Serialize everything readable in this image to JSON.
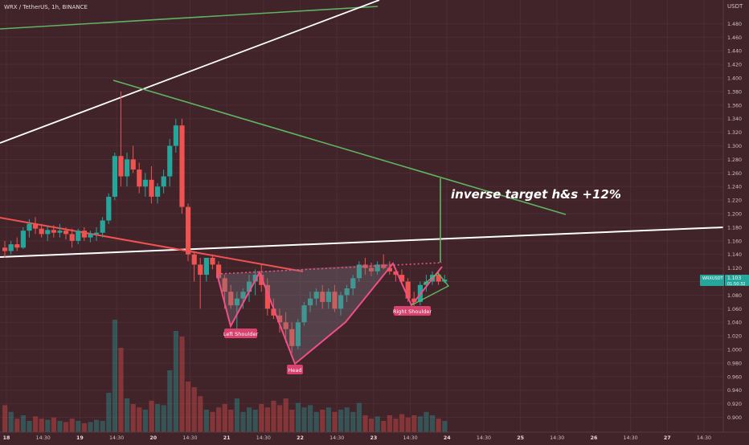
{
  "symbol_title": "WRX / TetherUS, 1h, BINANCE",
  "price_currency": "USDT",
  "last_price_badge": {
    "symbol": "WRXUSDT",
    "price": "1.103",
    "countdown": "01:50:32"
  },
  "annotations": {
    "target_text": "inverse target h&s +12%",
    "left_shoulder": "Left Shoulder",
    "head": "Head",
    "right_shoulder": "Right Shoulder"
  },
  "colors": {
    "up": "#26a69a",
    "down": "#ef5350",
    "background": "#41232a",
    "pattern": "#ef4f86"
  },
  "chart_data": {
    "type": "candlestick",
    "ylim": [
      0.89,
      1.503
    ],
    "x_tick_labels": [
      "18",
      "14:30",
      "19",
      "14:30",
      "20",
      "14:30",
      "21",
      "14:30",
      "22",
      "14:30",
      "23",
      "14:30",
      "24",
      "14:30",
      "25",
      "14:30",
      "26",
      "14:30",
      "27",
      "14:30"
    ],
    "y_tick_labels": [
      "1.480",
      "1.460",
      "1.440",
      "1.420",
      "1.400",
      "1.380",
      "1.360",
      "1.340",
      "1.320",
      "1.300",
      "1.280",
      "1.260",
      "1.240",
      "1.220",
      "1.200",
      "1.180",
      "1.160",
      "1.140",
      "1.120",
      "1.100",
      "1.080",
      "1.060",
      "1.040",
      "1.020",
      "1.000",
      "0.980",
      "0.960",
      "0.940",
      "0.920",
      "0.900"
    ],
    "ohlc": [
      [
        1.15,
        1.16,
        1.135,
        1.145
      ],
      [
        1.145,
        1.16,
        1.14,
        1.155
      ],
      [
        1.155,
        1.165,
        1.145,
        1.15
      ],
      [
        1.15,
        1.18,
        1.148,
        1.175
      ],
      [
        1.175,
        1.192,
        1.165,
        1.185
      ],
      [
        1.185,
        1.195,
        1.17,
        1.178
      ],
      [
        1.178,
        1.185,
        1.165,
        1.17
      ],
      [
        1.17,
        1.182,
        1.16,
        1.176
      ],
      [
        1.176,
        1.183,
        1.165,
        1.172
      ],
      [
        1.172,
        1.185,
        1.165,
        1.175
      ],
      [
        1.175,
        1.18,
        1.162,
        1.17
      ],
      [
        1.17,
        1.178,
        1.15,
        1.16
      ],
      [
        1.16,
        1.178,
        1.155,
        1.175
      ],
      [
        1.175,
        1.18,
        1.16,
        1.165
      ],
      [
        1.165,
        1.175,
        1.158,
        1.17
      ],
      [
        1.17,
        1.18,
        1.16,
        1.172
      ],
      [
        1.172,
        1.195,
        1.165,
        1.19
      ],
      [
        1.19,
        1.23,
        1.185,
        1.225
      ],
      [
        1.225,
        1.29,
        1.22,
        1.285
      ],
      [
        1.285,
        1.38,
        1.24,
        1.255
      ],
      [
        1.255,
        1.29,
        1.24,
        1.28
      ],
      [
        1.28,
        1.3,
        1.26,
        1.265
      ],
      [
        1.265,
        1.275,
        1.23,
        1.24
      ],
      [
        1.24,
        1.26,
        1.225,
        1.25
      ],
      [
        1.25,
        1.27,
        1.215,
        1.225
      ],
      [
        1.225,
        1.245,
        1.215,
        1.24
      ],
      [
        1.24,
        1.265,
        1.23,
        1.255
      ],
      [
        1.255,
        1.31,
        1.24,
        1.3
      ],
      [
        1.3,
        1.34,
        1.29,
        1.33
      ],
      [
        1.33,
        1.34,
        1.2,
        1.21
      ],
      [
        1.21,
        1.215,
        1.13,
        1.14
      ],
      [
        1.14,
        1.145,
        1.1,
        1.125
      ],
      [
        1.125,
        1.135,
        1.06,
        1.11
      ],
      [
        1.11,
        1.13,
        1.1,
        1.135
      ],
      [
        1.135,
        1.14,
        1.118,
        1.125
      ],
      [
        1.125,
        1.13,
        1.1,
        1.105
      ],
      [
        1.105,
        1.11,
        1.06,
        1.085
      ],
      [
        1.085,
        1.095,
        1.06,
        1.065
      ],
      [
        1.065,
        1.085,
        1.03,
        1.075
      ],
      [
        1.075,
        1.09,
        1.06,
        1.085
      ],
      [
        1.085,
        1.11,
        1.07,
        1.1
      ],
      [
        1.1,
        1.118,
        1.08,
        1.11
      ],
      [
        1.11,
        1.125,
        1.085,
        1.095
      ],
      [
        1.095,
        1.105,
        1.05,
        1.06
      ],
      [
        1.06,
        1.075,
        1.045,
        1.05
      ],
      [
        1.05,
        1.06,
        1.025,
        1.04
      ],
      [
        1.04,
        1.055,
        1.01,
        1.03
      ],
      [
        1.03,
        1.04,
        0.995,
        1.005
      ],
      [
        1.005,
        1.045,
        1.0,
        1.04
      ],
      [
        1.04,
        1.07,
        1.035,
        1.065
      ],
      [
        1.065,
        1.085,
        1.055,
        1.075
      ],
      [
        1.075,
        1.09,
        1.065,
        1.085
      ],
      [
        1.085,
        1.095,
        1.06,
        1.07
      ],
      [
        1.07,
        1.09,
        1.06,
        1.085
      ],
      [
        1.085,
        1.095,
        1.055,
        1.06
      ],
      [
        1.06,
        1.085,
        1.05,
        1.08
      ],
      [
        1.08,
        1.095,
        1.07,
        1.09
      ],
      [
        1.09,
        1.11,
        1.08,
        1.105
      ],
      [
        1.105,
        1.13,
        1.1,
        1.125
      ],
      [
        1.125,
        1.135,
        1.11,
        1.12
      ],
      [
        1.12,
        1.128,
        1.108,
        1.115
      ],
      [
        1.115,
        1.13,
        1.11,
        1.125
      ],
      [
        1.125,
        1.14,
        1.118,
        1.12
      ],
      [
        1.12,
        1.13,
        1.11,
        1.115
      ],
      [
        1.115,
        1.12,
        1.1,
        1.11
      ],
      [
        1.11,
        1.118,
        1.095,
        1.1
      ],
      [
        1.1,
        1.105,
        1.07,
        1.075
      ],
      [
        1.075,
        1.085,
        1.06,
        1.07
      ],
      [
        1.07,
        1.1,
        1.065,
        1.095
      ],
      [
        1.095,
        1.11,
        1.085,
        1.1
      ],
      [
        1.1,
        1.115,
        1.095,
        1.11
      ],
      [
        1.11,
        1.115,
        1.095,
        1.1
      ],
      [
        1.1,
        1.11,
        1.098,
        1.103
      ]
    ],
    "volume": [
      0.24,
      0.18,
      0.12,
      0.15,
      0.1,
      0.14,
      0.12,
      0.11,
      0.13,
      0.1,
      0.09,
      0.12,
      0.1,
      0.08,
      0.09,
      0.11,
      0.1,
      0.35,
      1.0,
      0.75,
      0.3,
      0.25,
      0.22,
      0.2,
      0.28,
      0.25,
      0.24,
      0.55,
      0.9,
      0.85,
      0.45,
      0.4,
      0.32,
      0.2,
      0.18,
      0.22,
      0.25,
      0.2,
      0.3,
      0.18,
      0.22,
      0.2,
      0.25,
      0.22,
      0.28,
      0.24,
      0.3,
      0.2,
      0.26,
      0.22,
      0.24,
      0.18,
      0.2,
      0.22,
      0.18,
      0.2,
      0.22,
      0.18,
      0.26,
      0.15,
      0.12,
      0.14,
      0.1,
      0.15,
      0.12,
      0.16,
      0.13,
      0.15,
      0.14,
      0.18,
      0.15,
      0.12,
      0.1
    ]
  }
}
